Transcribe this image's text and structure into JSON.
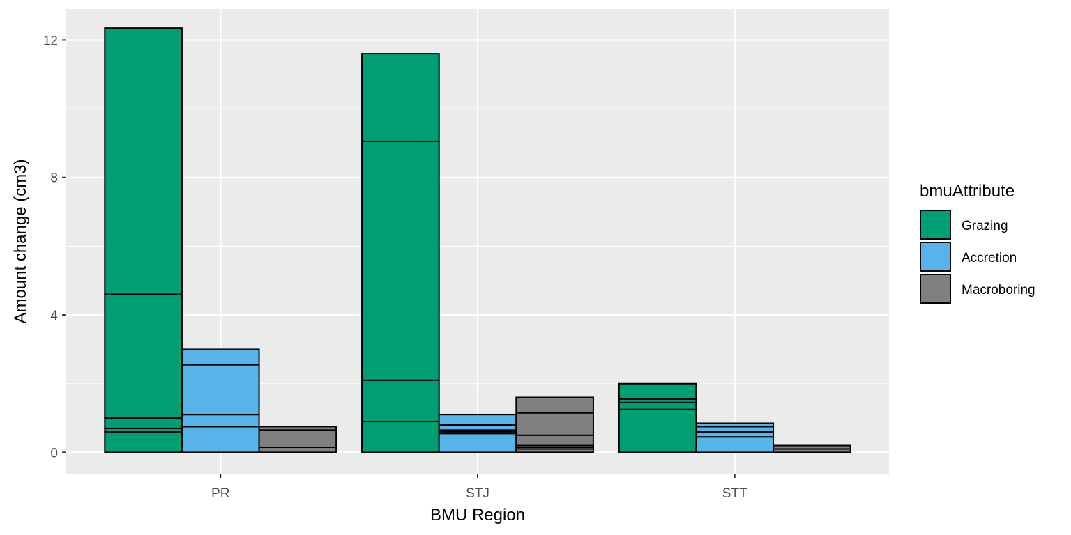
{
  "chart_data": {
    "type": "bar",
    "stacked": true,
    "bar_mode": "dodge",
    "xlabel": "BMU Region",
    "ylabel": "Amount change (cm3)",
    "categories": [
      "PR",
      "STJ",
      "STT"
    ],
    "yticks": [
      0,
      4,
      8,
      12
    ],
    "ylim": [
      -0.62,
      12.9
    ],
    "grid": true,
    "legend": {
      "title": "bmuAttribute",
      "position": "right",
      "entries": [
        "Grazing",
        "Accretion",
        "Macroboring"
      ]
    },
    "series": [
      {
        "name": "Grazing",
        "color": "#009E73",
        "segments": [
          [
            0.6,
            0.1,
            0.3,
            3.6,
            7.75
          ],
          [
            0.9,
            1.2,
            6.95,
            2.55
          ],
          [
            1.25,
            0.2,
            0.1,
            0.45
          ]
        ]
      },
      {
        "name": "Accretion",
        "color": "#56B4E9",
        "segments": [
          [
            0.75,
            0.35,
            1.45,
            0.45
          ],
          [
            0.55,
            0.05,
            0.05,
            0.15,
            0.3
          ],
          [
            0.45,
            0.15,
            0.15,
            0.1
          ]
        ]
      },
      {
        "name": "Macroboring",
        "color": "#7F7F7F",
        "segments": [
          [
            0.15,
            0.5,
            0.1
          ],
          [
            0.1,
            0.05,
            0.05,
            0.3,
            0.65,
            0.45
          ],
          [
            0.1,
            0.1
          ]
        ]
      }
    ]
  }
}
